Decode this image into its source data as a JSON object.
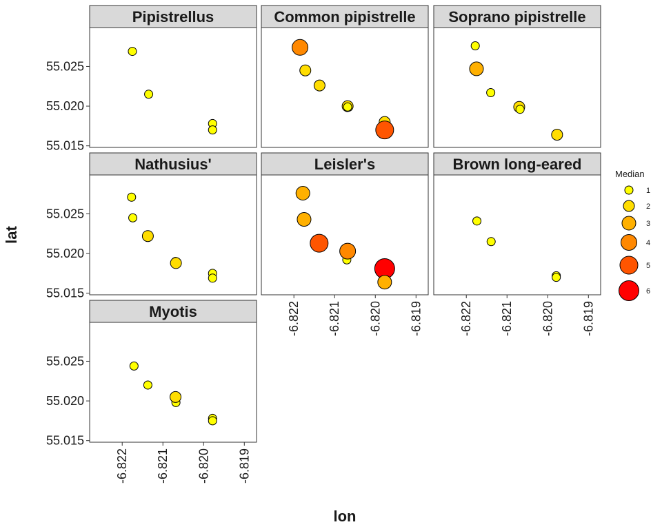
{
  "chart_data": {
    "type": "scatter",
    "xlabel": "lon",
    "ylabel": "lat",
    "xlim": [
      -6.8228,
      -6.8187
    ],
    "ylim": [
      55.0148,
      55.0299
    ],
    "x_ticks": [
      -6.822,
      -6.821,
      -6.82,
      -6.819
    ],
    "x_tick_labels": [
      "-6.822",
      "-6.821",
      "-6.820",
      "-6.819"
    ],
    "y_ticks": [
      55.015,
      55.02,
      55.025
    ],
    "y_tick_labels": [
      "55.015",
      "55.020",
      "55.025"
    ],
    "legend": {
      "title": "Median",
      "position": "right",
      "levels": [
        1,
        2,
        3,
        4,
        5,
        6
      ],
      "labels": [
        "1",
        "2",
        "3",
        "4",
        "5",
        "6"
      ],
      "colors": [
        "#ffff00",
        "#ffdd00",
        "#ffb000",
        "#ff8800",
        "#ff5500",
        "#ff0000"
      ]
    },
    "panels": [
      {
        "title": "Pipistrellus",
        "points": [
          {
            "x": -6.82175,
            "y": 55.0269,
            "median": 1
          },
          {
            "x": -6.82135,
            "y": 55.0215,
            "median": 1
          },
          {
            "x": -6.81978,
            "y": 55.0178,
            "median": 1
          },
          {
            "x": -6.81978,
            "y": 55.017,
            "median": 1
          }
        ]
      },
      {
        "title": "Common pipistrelle",
        "points": [
          {
            "x": -6.82185,
            "y": 55.0274,
            "median": 4
          },
          {
            "x": -6.82172,
            "y": 55.0245,
            "median": 2
          },
          {
            "x": -6.82137,
            "y": 55.0226,
            "median": 2
          },
          {
            "x": -6.82068,
            "y": 55.02,
            "median": 2
          },
          {
            "x": -6.82068,
            "y": 55.0199,
            "median": 1
          },
          {
            "x": -6.81977,
            "y": 55.018,
            "median": 2
          },
          {
            "x": -6.81977,
            "y": 55.017,
            "median": 5
          }
        ]
      },
      {
        "title": "Soprano pipistrelle",
        "points": [
          {
            "x": -6.82178,
            "y": 55.0276,
            "median": 1
          },
          {
            "x": -6.82175,
            "y": 55.0247,
            "median": 3
          },
          {
            "x": -6.8214,
            "y": 55.0217,
            "median": 1
          },
          {
            "x": -6.8207,
            "y": 55.0199,
            "median": 2
          },
          {
            "x": -6.82068,
            "y": 55.0196,
            "median": 1
          },
          {
            "x": -6.81977,
            "y": 55.0164,
            "median": 2
          }
        ]
      },
      {
        "title": "Nathusius'",
        "points": [
          {
            "x": -6.82177,
            "y": 55.0271,
            "median": 1
          },
          {
            "x": -6.82174,
            "y": 55.0245,
            "median": 1
          },
          {
            "x": -6.82137,
            "y": 55.0222,
            "median": 2
          },
          {
            "x": -6.82069,
            "y": 55.019,
            "median": 1
          },
          {
            "x": -6.82068,
            "y": 55.0188,
            "median": 2
          },
          {
            "x": -6.81978,
            "y": 55.0175,
            "median": 1
          },
          {
            "x": -6.81978,
            "y": 55.0169,
            "median": 1
          }
        ]
      },
      {
        "title": "Leisler's",
        "points": [
          {
            "x": -6.82178,
            "y": 55.0276,
            "median": 3
          },
          {
            "x": -6.82175,
            "y": 55.0243,
            "median": 3
          },
          {
            "x": -6.82138,
            "y": 55.0213,
            "median": 5
          },
          {
            "x": -6.8207,
            "y": 55.0192,
            "median": 1
          },
          {
            "x": -6.82068,
            "y": 55.0203,
            "median": 4
          },
          {
            "x": -6.81977,
            "y": 55.0181,
            "median": 6
          },
          {
            "x": -6.81977,
            "y": 55.0164,
            "median": 3
          }
        ]
      },
      {
        "title": "Brown long-eared",
        "points": [
          {
            "x": -6.82174,
            "y": 55.0241,
            "median": 1
          },
          {
            "x": -6.82139,
            "y": 55.0215,
            "median": 1
          },
          {
            "x": -6.81979,
            "y": 55.0172,
            "median": 1
          },
          {
            "x": -6.81979,
            "y": 55.017,
            "median": 1
          }
        ]
      },
      {
        "title": "Myotis",
        "points": [
          {
            "x": -6.82171,
            "y": 55.0244,
            "median": 1
          },
          {
            "x": -6.82137,
            "y": 55.022,
            "median": 1
          },
          {
            "x": -6.82068,
            "y": 55.0198,
            "median": 1
          },
          {
            "x": -6.82069,
            "y": 55.0205,
            "median": 2
          },
          {
            "x": -6.81978,
            "y": 55.0178,
            "median": 1
          },
          {
            "x": -6.81978,
            "y": 55.0175,
            "median": 1
          }
        ]
      }
    ]
  }
}
